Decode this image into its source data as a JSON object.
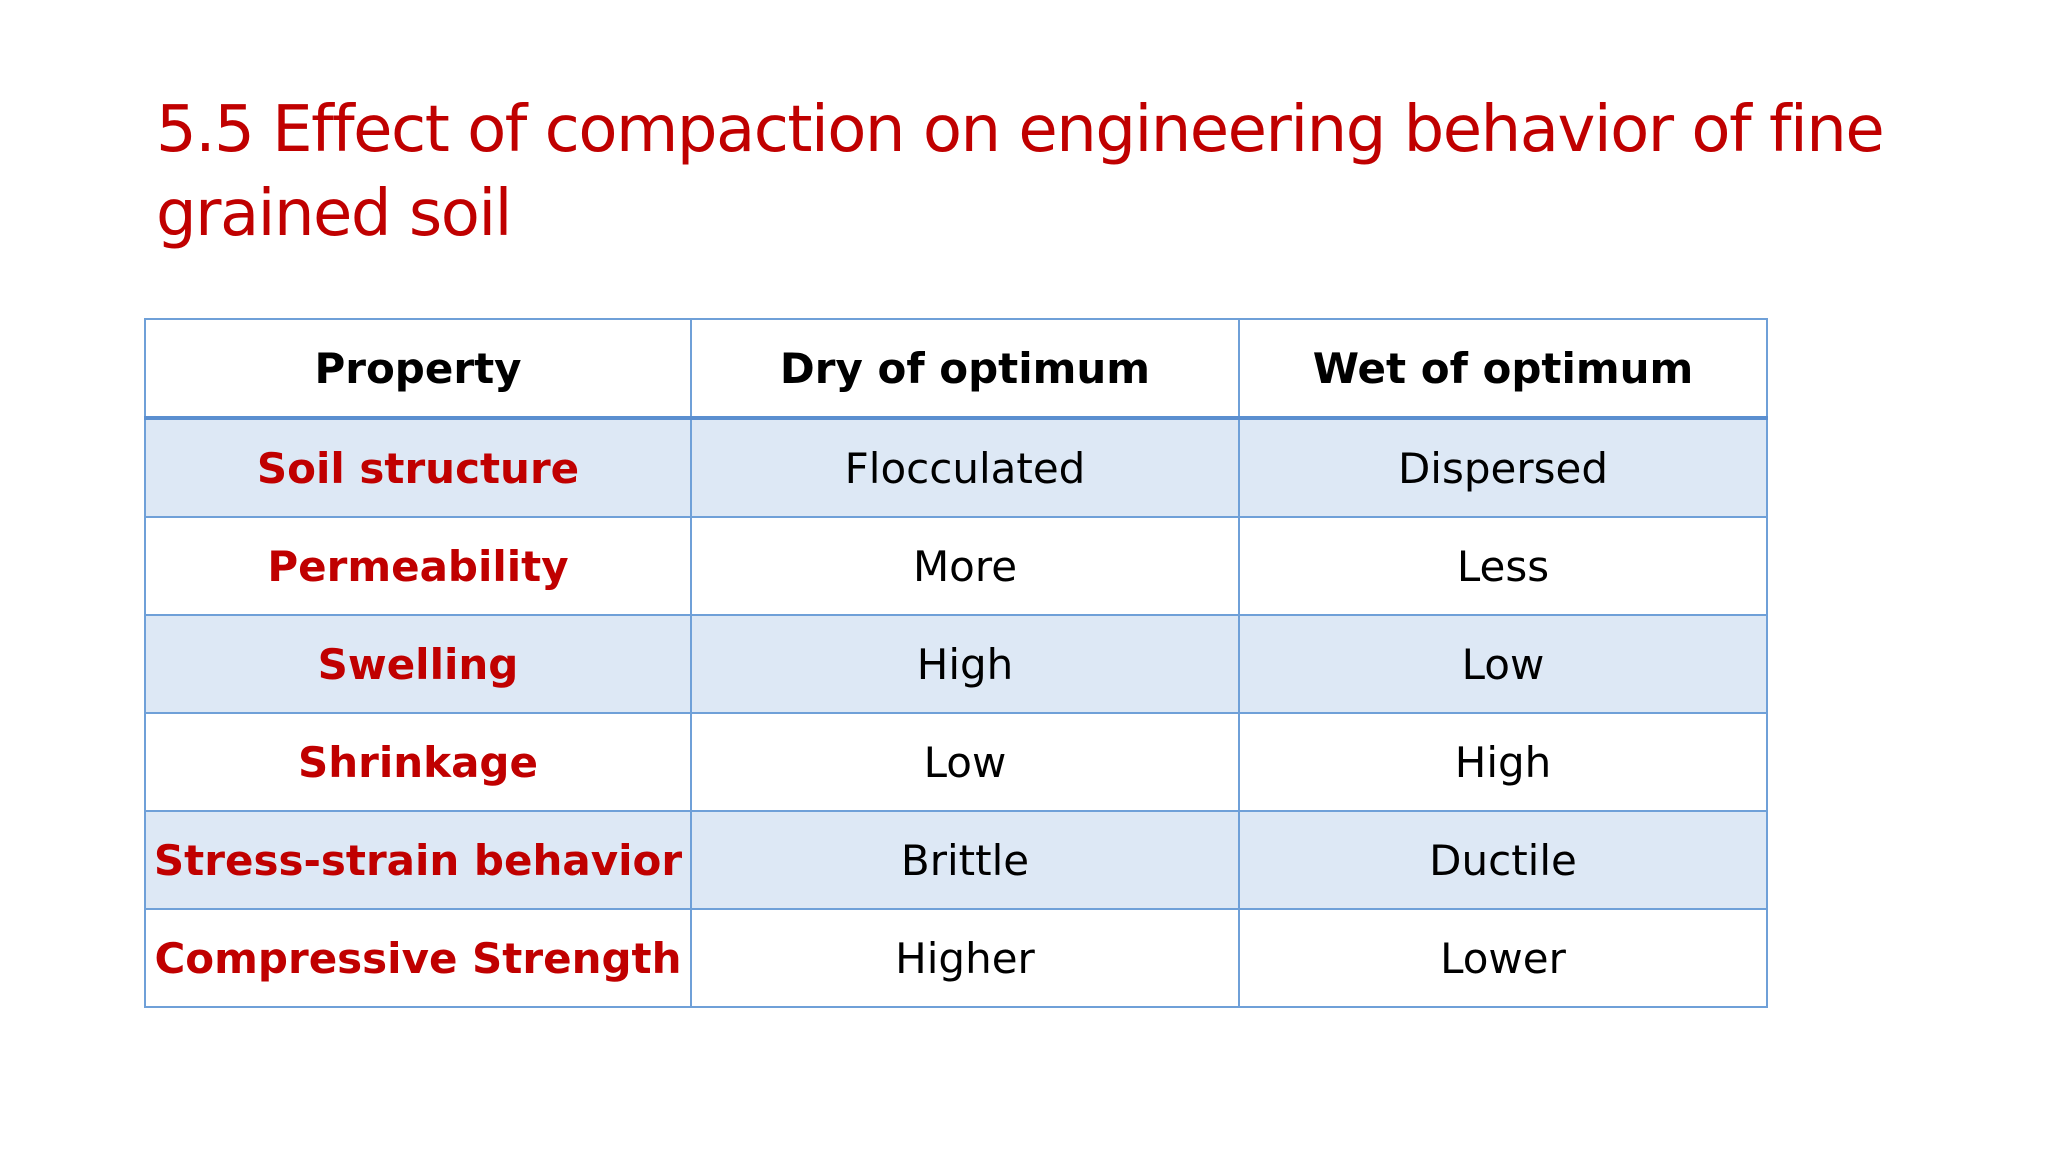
{
  "title": "5.5 Effect of compaction on engineering behavior of fine grained soil",
  "table": {
    "header": [
      "Property",
      "Dry of optimum",
      "Wet of optimum"
    ],
    "rows": [
      [
        "Soil structure",
        "Flocculated",
        "Dispersed"
      ],
      [
        "Permeability",
        "More",
        "Less"
      ],
      [
        "Swelling",
        "High",
        "Low"
      ],
      [
        "Shrinkage",
        "Low",
        "High"
      ],
      [
        "Stress-strain behavior",
        "Brittle",
        "Ductile"
      ],
      [
        "Compressive Strength",
        "Higher",
        "Lower"
      ]
    ]
  }
}
